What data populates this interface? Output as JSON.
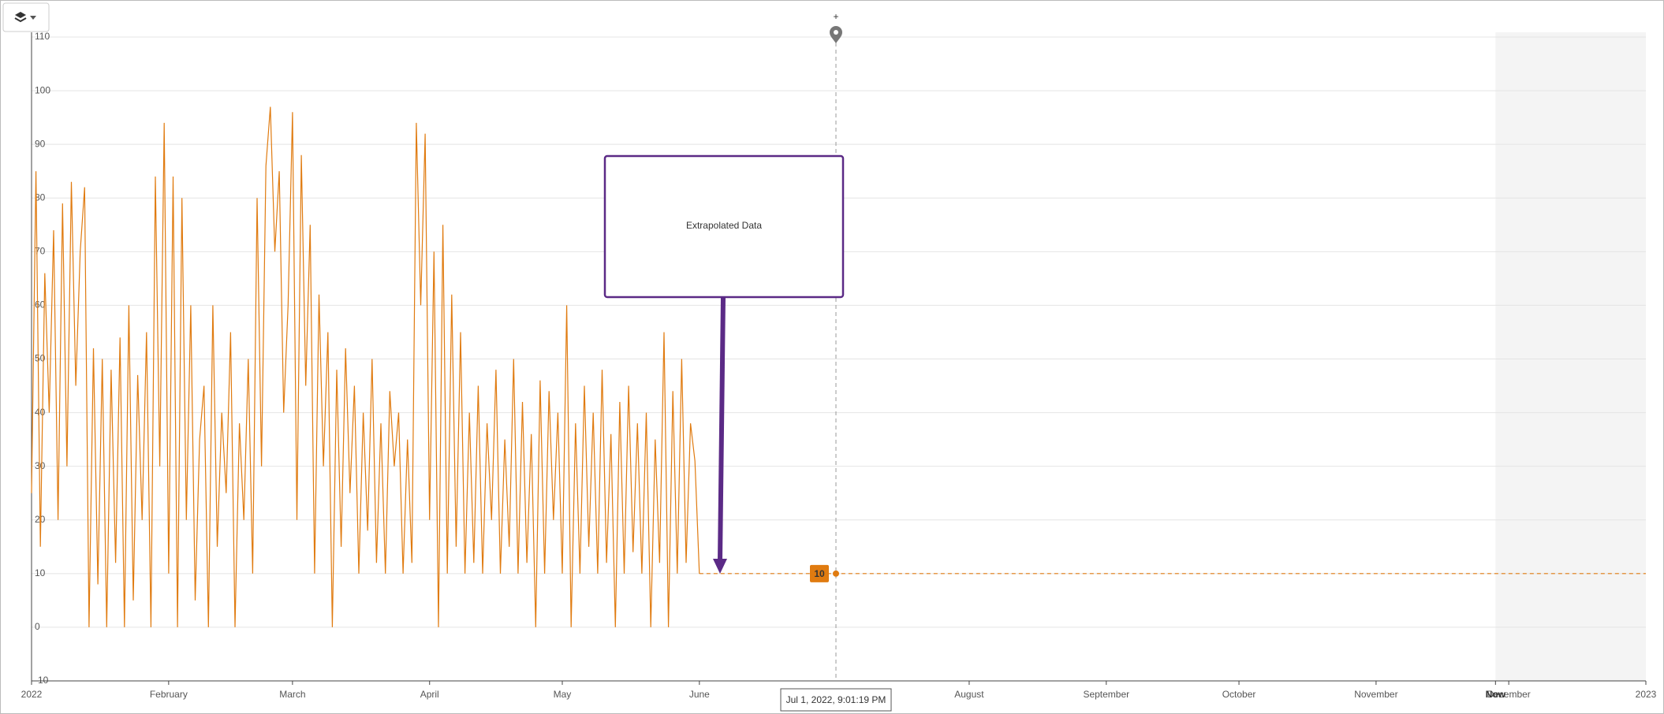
{
  "chart_data": {
    "type": "line",
    "x": [
      "2022-01-01",
      "2022-01-02",
      "2022-01-03",
      "2022-01-04",
      "2022-01-05",
      "2022-01-06",
      "2022-01-07",
      "2022-01-08",
      "2022-01-09",
      "2022-01-10",
      "2022-01-11",
      "2022-01-12",
      "2022-01-13",
      "2022-01-14",
      "2022-01-15",
      "2022-01-16",
      "2022-01-17",
      "2022-01-18",
      "2022-01-19",
      "2022-01-20",
      "2022-01-21",
      "2022-01-22",
      "2022-01-23",
      "2022-01-24",
      "2022-01-25",
      "2022-01-26",
      "2022-01-27",
      "2022-01-28",
      "2022-01-29",
      "2022-01-30",
      "2022-01-31",
      "2022-02-01",
      "2022-02-02",
      "2022-02-03",
      "2022-02-04",
      "2022-02-05",
      "2022-02-06",
      "2022-02-07",
      "2022-02-08",
      "2022-02-09",
      "2022-02-10",
      "2022-02-11",
      "2022-02-12",
      "2022-02-13",
      "2022-02-14",
      "2022-02-15",
      "2022-02-16",
      "2022-02-17",
      "2022-02-18",
      "2022-02-19",
      "2022-02-20",
      "2022-02-21",
      "2022-02-22",
      "2022-02-23",
      "2022-02-24",
      "2022-02-25",
      "2022-02-26",
      "2022-02-27",
      "2022-02-28",
      "2022-03-01",
      "2022-03-02",
      "2022-03-03",
      "2022-03-04",
      "2022-03-05",
      "2022-03-06",
      "2022-03-07",
      "2022-03-08",
      "2022-03-09",
      "2022-03-10",
      "2022-03-11",
      "2022-03-12",
      "2022-03-13",
      "2022-03-14",
      "2022-03-15",
      "2022-03-16",
      "2022-03-17",
      "2022-03-18",
      "2022-03-19",
      "2022-03-20",
      "2022-03-21",
      "2022-03-22",
      "2022-03-23",
      "2022-03-24",
      "2022-03-25",
      "2022-03-26",
      "2022-03-27",
      "2022-03-28",
      "2022-03-29",
      "2022-03-30",
      "2022-03-31",
      "2022-04-01",
      "2022-04-02",
      "2022-04-03",
      "2022-04-04",
      "2022-04-05",
      "2022-04-06",
      "2022-04-07",
      "2022-04-08",
      "2022-04-09",
      "2022-04-10",
      "2022-04-11",
      "2022-04-12",
      "2022-04-13",
      "2022-04-14",
      "2022-04-15",
      "2022-04-16",
      "2022-04-17",
      "2022-04-18",
      "2022-04-19",
      "2022-04-20",
      "2022-04-21",
      "2022-04-22",
      "2022-04-23",
      "2022-04-24",
      "2022-04-25",
      "2022-04-26",
      "2022-04-27",
      "2022-04-28",
      "2022-04-29",
      "2022-04-30",
      "2022-05-01",
      "2022-05-02",
      "2022-05-03",
      "2022-05-04",
      "2022-05-05",
      "2022-05-06",
      "2022-05-07",
      "2022-05-08",
      "2022-05-09",
      "2022-05-10",
      "2022-05-11",
      "2022-05-12",
      "2022-05-13",
      "2022-05-14",
      "2022-05-15",
      "2022-05-16",
      "2022-05-17",
      "2022-05-18",
      "2022-05-19",
      "2022-05-20",
      "2022-05-21",
      "2022-05-22",
      "2022-05-23",
      "2022-05-24",
      "2022-05-25",
      "2022-05-26",
      "2022-05-27",
      "2022-05-28",
      "2022-05-29",
      "2022-05-30",
      "2022-05-31",
      "2022-06-01"
    ],
    "series": [
      {
        "color": "#e07b10",
        "values": [
          25,
          85,
          15,
          66,
          40,
          74,
          20,
          79,
          30,
          83,
          45,
          70,
          82,
          0,
          52,
          8,
          50,
          0,
          48,
          12,
          54,
          0,
          60,
          5,
          47,
          20,
          55,
          0,
          84,
          30,
          94,
          10,
          84,
          0,
          80,
          20,
          60,
          5,
          35,
          45,
          0,
          60,
          15,
          40,
          25,
          55,
          0,
          38,
          20,
          50,
          10,
          80,
          30,
          86,
          97,
          70,
          85,
          40,
          60,
          96,
          20,
          88,
          45,
          75,
          10,
          62,
          30,
          55,
          0,
          48,
          15,
          52,
          25,
          45,
          10,
          40,
          18,
          50,
          12,
          38,
          10,
          44,
          30,
          40,
          10,
          35,
          12,
          94,
          60,
          92,
          20,
          70,
          0,
          75,
          10,
          62,
          15,
          55,
          10,
          40,
          12,
          45,
          10,
          38,
          20,
          48,
          10,
          35,
          15,
          50,
          10,
          42,
          12,
          36,
          0,
          46,
          10,
          44,
          20,
          40,
          10,
          60,
          0,
          38,
          10,
          45,
          15,
          40,
          10,
          48,
          12,
          36,
          0,
          42,
          10,
          45,
          14,
          38,
          10,
          40,
          0,
          35,
          12,
          55,
          0,
          44,
          10,
          50,
          12,
          38,
          31,
          10
        ]
      }
    ],
    "extrapolation": {
      "x": [
        "2022-06-01",
        "2023-01-01"
      ],
      "values": [
        10,
        10
      ],
      "color": "#e07b10",
      "style": "dashed"
    },
    "annotation": {
      "text": "Extrapolated Data",
      "color": "#5b2a86"
    },
    "cursor": {
      "x": "2022-07-01T21:01:19",
      "label": "Jul 1, 2022, 9:01:19 PM",
      "value": 10,
      "value_label": "10",
      "marker": "+"
    },
    "now_marker": {
      "x": "2022-11-28",
      "label": "Now"
    },
    "xlim": [
      "2022-01-01",
      "2023-01-01"
    ],
    "xticks": [
      {
        "value": "2022-01-01",
        "label": "2022"
      },
      {
        "value": "2022-02-01",
        "label": "February"
      },
      {
        "value": "2022-03-01",
        "label": "March"
      },
      {
        "value": "2022-04-01",
        "label": "April"
      },
      {
        "value": "2022-05-01",
        "label": "May"
      },
      {
        "value": "2022-06-01",
        "label": "June"
      },
      {
        "value": "2022-08-01",
        "label": "August"
      },
      {
        "value": "2022-09-01",
        "label": "September"
      },
      {
        "value": "2022-10-01",
        "label": "October"
      },
      {
        "value": "2022-11-01",
        "label": "November"
      },
      {
        "value": "2022-12-01",
        "label": "December"
      },
      {
        "value": "2023-01-01",
        "label": "2023"
      }
    ],
    "ylim": [
      -10,
      110
    ],
    "yticks": [
      -10,
      0,
      10,
      20,
      30,
      40,
      50,
      60,
      70,
      80,
      90,
      100,
      110
    ],
    "grid": true
  }
}
